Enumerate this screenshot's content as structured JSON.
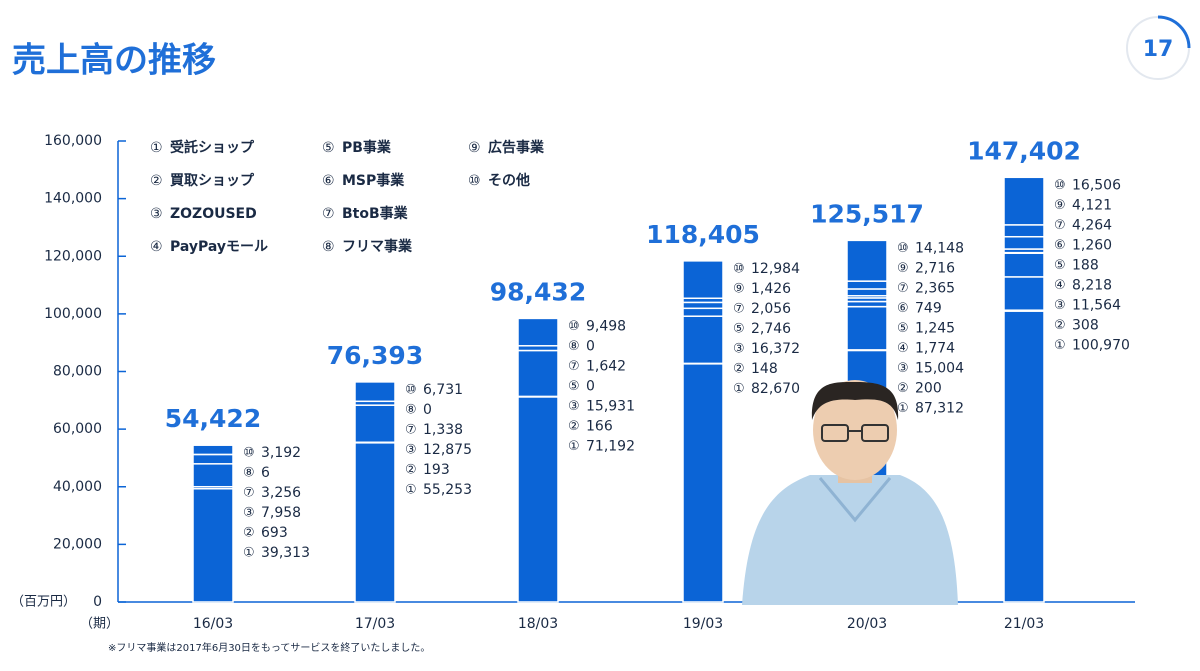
{
  "title": "売上高の推移",
  "page_number": "17",
  "footnote": "※フリマ事業は2017年6月30日をもってサービスを終了いたしました。",
  "chart_data": {
    "type": "stacked-bar",
    "y_unit_label": "（百万円）",
    "x_unit_label": "（期）",
    "categories": [
      "16/03",
      "17/03",
      "18/03",
      "19/03",
      "20/03",
      "21/03"
    ],
    "ylim": [
      0,
      160000
    ],
    "yticks": [
      0,
      {
        "value": 20000,
        "label": "20,000"
      },
      {
        "value": 40000,
        "label": "40,000"
      },
      {
        "value": 60000,
        "label": "60,000"
      },
      {
        "value": 80000,
        "label": "80,000"
      },
      {
        "value": 100000,
        "label": "100,000"
      },
      {
        "value": 120000,
        "label": "120,000"
      },
      {
        "value": 140000,
        "label": "140,000"
      },
      {
        "value": 160000,
        "label": "160,000"
      }
    ],
    "color": "#0b64d6",
    "totals": {
      "values": [
        54422,
        76393,
        98432,
        118405,
        125517,
        147402
      ],
      "value_labels": [
        "54,422",
        "76,393",
        "98,432",
        "118,405",
        "125,517",
        "147,402"
      ]
    },
    "series": [
      {
        "marker": "①",
        "name": "受託ショップ",
        "values": [
          39313,
          55253,
          71192,
          82670,
          87312,
          100970
        ],
        "value_labels": [
          "39,313",
          "55,253",
          "71,192",
          "82,670",
          "87,312",
          "100,970"
        ]
      },
      {
        "marker": "②",
        "name": "買取ショップ",
        "values": [
          693,
          193,
          166,
          148,
          200,
          308
        ],
        "value_labels": [
          "693",
          "193",
          "166",
          "148",
          "200",
          "308"
        ]
      },
      {
        "marker": "③",
        "name": "ZOZOUSED",
        "values": [
          7958,
          12875,
          15931,
          16372,
          15004,
          11564
        ],
        "value_labels": [
          "7,958",
          "12,875",
          "15,931",
          "16,372",
          "15,004",
          "11,564"
        ]
      },
      {
        "marker": "④",
        "name": "PayPayモール",
        "values": [
          null,
          null,
          null,
          null,
          1774,
          8218
        ],
        "value_labels": [
          null,
          null,
          null,
          null,
          "1,774",
          "8,218"
        ]
      },
      {
        "marker": "⑤",
        "name": "PB事業",
        "values": [
          null,
          null,
          0,
          2746,
          1245,
          188
        ],
        "value_labels": [
          null,
          null,
          "0",
          "2,746",
          "1,245",
          "188"
        ]
      },
      {
        "marker": "⑥",
        "name": "MSP事業",
        "values": [
          null,
          null,
          null,
          null,
          749,
          1260
        ],
        "value_labels": [
          null,
          null,
          null,
          null,
          "749",
          "1,260"
        ]
      },
      {
        "marker": "⑦",
        "name": "BtoB事業",
        "values": [
          3256,
          1338,
          1642,
          2056,
          2365,
          4264
        ],
        "value_labels": [
          "3,256",
          "1,338",
          "1,642",
          "2,056",
          "2,365",
          "4,264"
        ]
      },
      {
        "marker": "⑧",
        "name": "フリマ事業",
        "values": [
          6,
          0,
          0,
          null,
          null,
          null
        ],
        "value_labels": [
          "6",
          "0",
          "0",
          null,
          null,
          null
        ]
      },
      {
        "marker": "⑨",
        "name": "広告事業",
        "values": [
          null,
          null,
          null,
          1426,
          2716,
          4121
        ],
        "value_labels": [
          null,
          null,
          null,
          "1,426",
          "2,716",
          "4,121"
        ]
      },
      {
        "marker": "⑩",
        "name": "その他",
        "values": [
          3192,
          6731,
          9498,
          12984,
          14148,
          16506
        ],
        "value_labels": [
          "3,192",
          "6,731",
          "9,498",
          "12,984",
          "14,148",
          "16,506"
        ]
      }
    ]
  }
}
